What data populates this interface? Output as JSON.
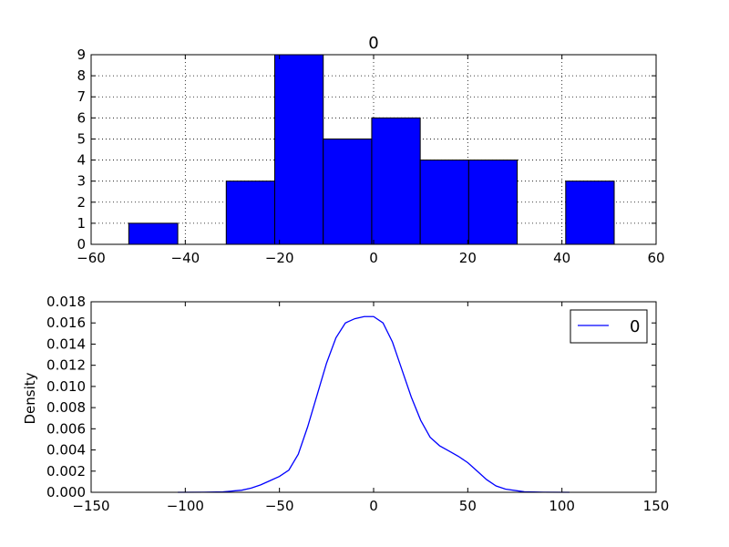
{
  "colors": {
    "bar_fill": "#0000ff",
    "line": "#0000ff",
    "axes": "#000000",
    "grid": "#000000",
    "background": "#ffffff"
  },
  "chart_data": [
    {
      "type": "bar",
      "subtype": "histogram",
      "title": "0",
      "xlabel": "",
      "ylabel": "",
      "xlim": [
        -60,
        60
      ],
      "ylim": [
        0,
        9
      ],
      "grid": true,
      "xticks": [
        -60,
        -40,
        -20,
        0,
        20,
        40,
        60
      ],
      "xtick_labels": [
        "−60",
        "−40",
        "−20",
        "0",
        "20",
        "40",
        "60"
      ],
      "yticks": [
        0,
        1,
        2,
        3,
        4,
        5,
        6,
        7,
        8,
        9
      ],
      "ytick_labels": [
        "0",
        "1",
        "2",
        "3",
        "4",
        "5",
        "6",
        "7",
        "8",
        "9"
      ],
      "bins": [
        {
          "x0": -52.0,
          "x1": -41.6,
          "count": 1
        },
        {
          "x0": -41.6,
          "x1": -31.3,
          "count": 0
        },
        {
          "x0": -31.3,
          "x1": -21.0,
          "count": 3
        },
        {
          "x0": -21.0,
          "x1": -10.7,
          "count": 9
        },
        {
          "x0": -10.7,
          "x1": -0.4,
          "count": 5
        },
        {
          "x0": -0.4,
          "x1": 9.9,
          "count": 6
        },
        {
          "x0": 9.9,
          "x1": 20.2,
          "count": 4
        },
        {
          "x0": 20.2,
          "x1": 30.5,
          "count": 4
        },
        {
          "x0": 30.5,
          "x1": 40.8,
          "count": 0
        },
        {
          "x0": 40.8,
          "x1": 51.1,
          "count": 3
        }
      ]
    },
    {
      "type": "line",
      "subtype": "density",
      "title": "",
      "xlabel": "",
      "ylabel": "Density",
      "xlim": [
        -150,
        150
      ],
      "ylim": [
        0,
        0.018
      ],
      "grid": false,
      "legend": {
        "position": "top-right",
        "entries": [
          "0"
        ]
      },
      "xticks": [
        -150,
        -100,
        -50,
        0,
        50,
        100,
        150
      ],
      "xtick_labels": [
        "−150",
        "−100",
        "−50",
        "0",
        "50",
        "100",
        "150"
      ],
      "yticks": [
        0,
        0.002,
        0.004,
        0.006,
        0.008,
        0.01,
        0.012,
        0.014,
        0.016,
        0.018
      ],
      "ytick_labels": [
        "0.000",
        "0.002",
        "0.004",
        "0.006",
        "0.008",
        "0.010",
        "0.012",
        "0.014",
        "0.016",
        "0.018"
      ],
      "series": [
        {
          "name": "0",
          "x": [
            -104,
            -90,
            -80,
            -70,
            -65,
            -60,
            -55,
            -50,
            -45,
            -40,
            -35,
            -30,
            -25,
            -20,
            -15,
            -10,
            -5,
            0,
            5,
            10,
            15,
            20,
            25,
            30,
            35,
            40,
            45,
            50,
            55,
            60,
            65,
            70,
            80,
            90,
            104
          ],
          "y": [
            0.0,
            1e-05,
            4e-05,
            0.0002,
            0.0004,
            0.0007,
            0.0011,
            0.0015,
            0.0021,
            0.0036,
            0.0062,
            0.0092,
            0.0122,
            0.0146,
            0.016,
            0.0164,
            0.0166,
            0.0166,
            0.016,
            0.0142,
            0.0116,
            0.009,
            0.0068,
            0.0052,
            0.0044,
            0.0039,
            0.0034,
            0.0028,
            0.002,
            0.0012,
            0.0006,
            0.0003,
            5e-05,
            1e-05,
            0.0
          ]
        }
      ]
    }
  ]
}
